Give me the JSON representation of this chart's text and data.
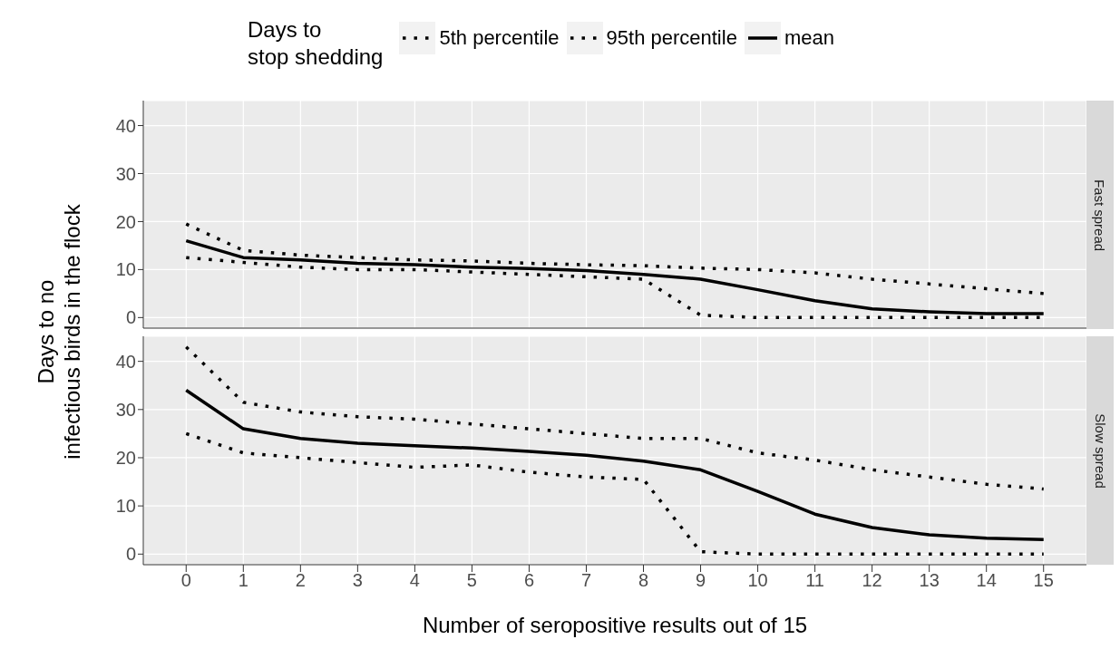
{
  "chart_data": [
    {
      "type": "line",
      "title": "Fast spread",
      "ylabel": "Days to no\ninfectious birds in the flock",
      "legend_title": "Days to\nstop shedding",
      "legend": "top",
      "grid": true,
      "marker": "none",
      "tick_labels": "y",
      "x": [
        0,
        1,
        2,
        3,
        4,
        5,
        6,
        7,
        8,
        9,
        10,
        11,
        12,
        13,
        14,
        15
      ],
      "xlim": [
        -0.75,
        15.75
      ],
      "xticks": [
        0,
        1,
        2,
        3,
        4,
        5,
        6,
        7,
        8,
        9,
        10,
        11,
        12,
        13,
        14,
        15
      ],
      "ylim": [
        -2.2,
        45.2
      ],
      "yticks": [
        0,
        10,
        20,
        30,
        40
      ],
      "series": [
        {
          "name": "5th percentile",
          "color": "#000000",
          "line_style": "dotted",
          "values": [
            12.5,
            11.5,
            10.5,
            10,
            10,
            9.5,
            9,
            8.5,
            8,
            0.5,
            0,
            0,
            0,
            0,
            0,
            0
          ]
        },
        {
          "name": "95th percentile",
          "color": "#000000",
          "line_style": "dotted",
          "values": [
            19.5,
            14,
            13,
            12.5,
            12,
            11.8,
            11.3,
            11,
            10.8,
            10.3,
            10,
            9.3,
            8,
            7,
            6,
            5
          ]
        },
        {
          "name": "mean",
          "color": "#000000",
          "line_style": "solid",
          "values": [
            16,
            12.5,
            12,
            11.3,
            11,
            10.5,
            10.2,
            9.8,
            9,
            8,
            5.8,
            3.5,
            1.8,
            1.2,
            0.8,
            0.8
          ]
        }
      ]
    },
    {
      "type": "line",
      "title": "Slow spread",
      "xlabel": "Number of seropositive results out of 15",
      "grid": true,
      "marker": "none",
      "x": [
        0,
        1,
        2,
        3,
        4,
        5,
        6,
        7,
        8,
        9,
        10,
        11,
        12,
        13,
        14,
        15
      ],
      "xlim": [
        -0.75,
        15.75
      ],
      "xticks": [
        0,
        1,
        2,
        3,
        4,
        5,
        6,
        7,
        8,
        9,
        10,
        11,
        12,
        13,
        14,
        15
      ],
      "ylim": [
        -2.2,
        45.2
      ],
      "yticks": [
        0,
        10,
        20,
        30,
        40
      ],
      "series": [
        {
          "color": "#000000",
          "line_style": "dotted",
          "values": [
            25,
            21,
            20,
            19,
            18,
            18.5,
            17,
            16,
            15.5,
            0.5,
            0,
            0,
            0,
            0,
            0,
            0
          ]
        },
        {
          "color": "#000000",
          "line_style": "dotted",
          "values": [
            43,
            31.5,
            29.5,
            28.5,
            28,
            27,
            26,
            25,
            24,
            24,
            21,
            19.5,
            17.5,
            16,
            14.5,
            13.5
          ]
        },
        {
          "color": "#000000",
          "line_style": "solid",
          "values": [
            34,
            26,
            24,
            23,
            22.5,
            22,
            21.3,
            20.5,
            19.3,
            17.5,
            13,
            8.3,
            5.5,
            4,
            3.3,
            3
          ]
        }
      ]
    }
  ]
}
